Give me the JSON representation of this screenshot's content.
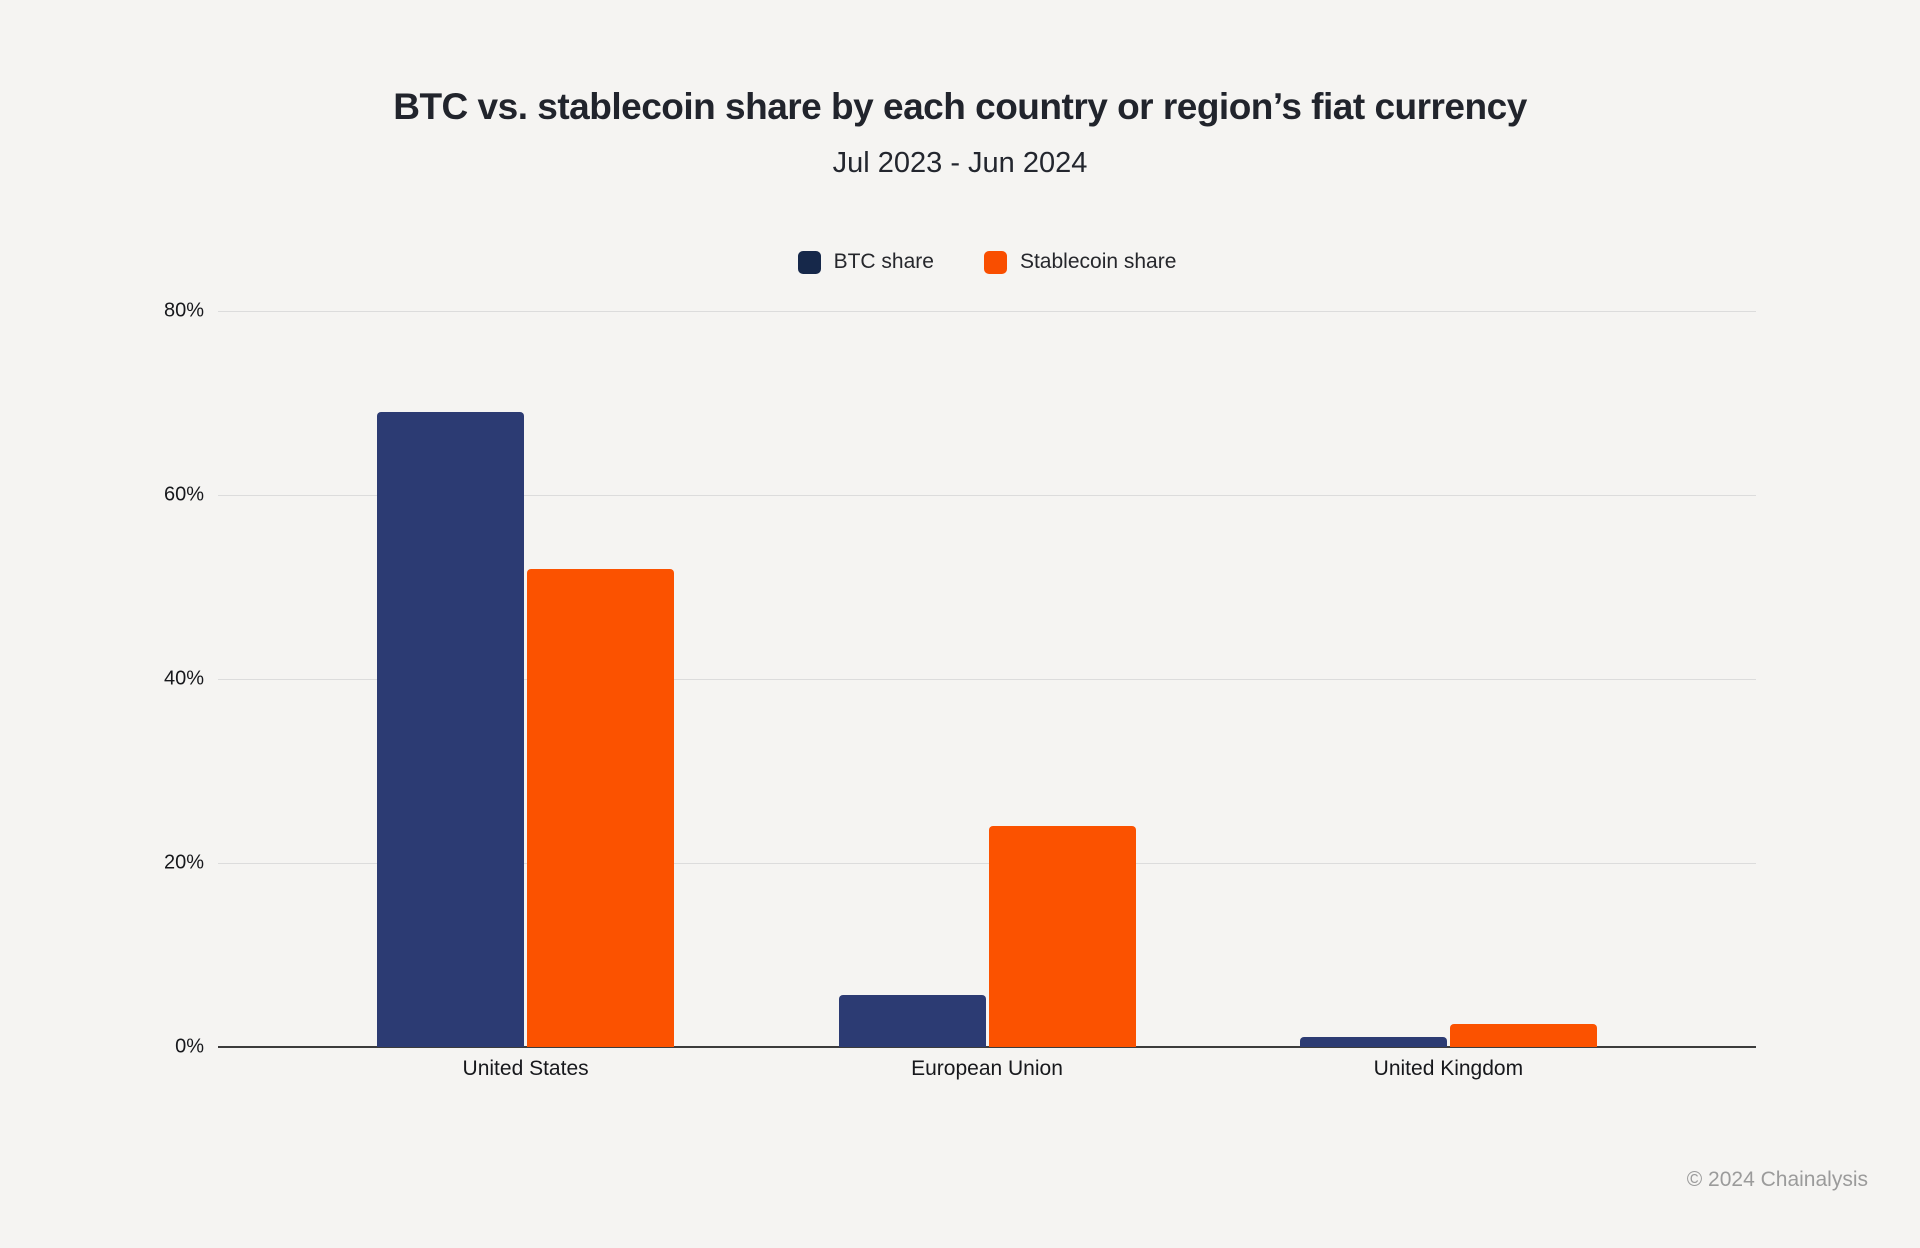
{
  "page": {
    "background": "#f5f4f2",
    "footer": "© 2024 Chainalysis"
  },
  "chart_data": {
    "type": "bar",
    "title": "BTC vs. stablecoin share by each country or region’s fiat currency",
    "subtitle": "Jul 2023 - Jun 2024",
    "categories": [
      "United States",
      "European Union",
      "United Kingdom"
    ],
    "series": [
      {
        "name": "BTC share",
        "color": "#2c3b73",
        "legend_color": "#16284a",
        "values": [
          69,
          5.6,
          1.1
        ]
      },
      {
        "name": "Stablecoin share",
        "color": "#fb5200",
        "legend_color": "#f94e00",
        "values": [
          52,
          24,
          2.5
        ]
      }
    ],
    "xlabel": "",
    "ylabel": "",
    "ylim": [
      0,
      80
    ],
    "yticks": [
      0,
      20,
      40,
      60,
      80
    ],
    "ytick_suffix": "%",
    "grid": true,
    "legend_position": "top-center",
    "colors": {
      "gridline": "#dcdcdc",
      "axis_line": "#3c3c3c",
      "title_text": "#21242c",
      "tick_text": "#17181c",
      "footer_text": "#9b9b9b"
    }
  }
}
